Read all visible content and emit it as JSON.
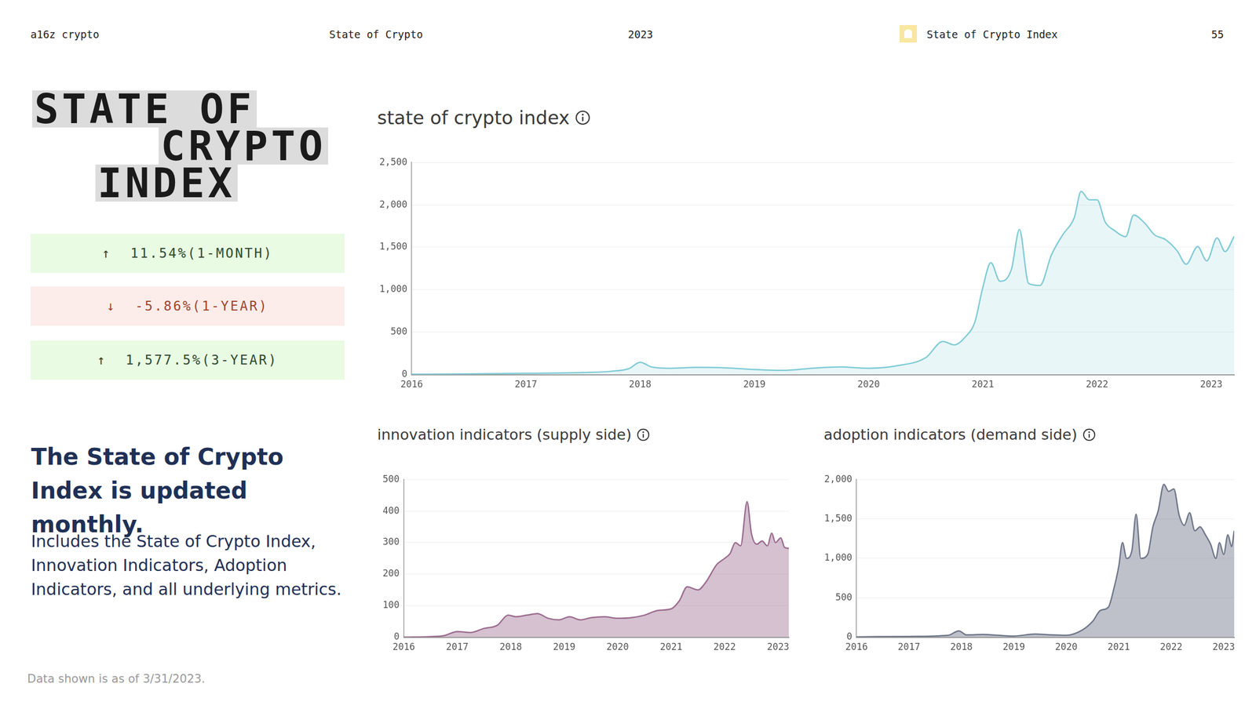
{
  "header": {
    "items": [
      "a16z crypto",
      "State of Crypto",
      "2023"
    ],
    "section": "State of Crypto Index",
    "page": "55"
  },
  "title_lines": [
    "STATE OF",
    "CRYPTO",
    "INDEX"
  ],
  "stats": [
    {
      "text": "↑  11.54%(1-MONTH)",
      "color": "#2f4a2f",
      "background": "#e9fbe3"
    },
    {
      "text": "↓  -5.86%(1-YEAR)",
      "color": "#a3442c",
      "background": "#fcedea"
    },
    {
      "text": "↑  1,577.5%(3-YEAR)",
      "color": "#2f4a2f",
      "background": "#e9fbe3"
    }
  ],
  "heading": "The State of Crypto Index is updated monthly.",
  "body": "Includes the State of Crypto Index, Innovation Indicators, Adoption Indicators, and all underlying metrics.",
  "footnote": "Data shown is as of 3/31/2023.",
  "chart_data": [
    {
      "type": "area",
      "title": "state of crypto index",
      "x": [
        2016,
        2016.5,
        2017,
        2017.5,
        2017.75,
        2017.9,
        2018,
        2018.1,
        2018.25,
        2018.5,
        2018.75,
        2019,
        2019.25,
        2019.5,
        2019.75,
        2020,
        2020.25,
        2020.5,
        2020.65,
        2020.75,
        2020.85,
        2020.93,
        2021,
        2021.07,
        2021.15,
        2021.25,
        2021.32,
        2021.4,
        2021.5,
        2021.6,
        2021.7,
        2021.8,
        2021.86,
        2021.93,
        2022,
        2022.07,
        2022.15,
        2022.25,
        2022.32,
        2022.42,
        2022.5,
        2022.6,
        2022.7,
        2022.78,
        2022.88,
        2022.96,
        2023.05,
        2023.12,
        2023.2
      ],
      "values": [
        5,
        8,
        15,
        25,
        40,
        70,
        145,
        90,
        75,
        85,
        80,
        60,
        50,
        75,
        90,
        75,
        105,
        200,
        390,
        350,
        450,
        620,
        1030,
        1320,
        1100,
        1240,
        1710,
        1075,
        1050,
        1410,
        1650,
        1850,
        2160,
        2060,
        2060,
        1800,
        1700,
        1625,
        1880,
        1780,
        1650,
        1590,
        1460,
        1300,
        1510,
        1340,
        1610,
        1450,
        1630
      ],
      "color": "#7fcbd6",
      "xlim": [
        2016,
        2023.2
      ],
      "xticks": [
        2016,
        2017,
        2018,
        2019,
        2020,
        2021,
        2022,
        2023
      ],
      "ylim": [
        0,
        2500
      ],
      "yticks": [
        0,
        500,
        {
          "value": 1000,
          "label": "1,000"
        },
        {
          "value": 1500,
          "label": "1,500"
        },
        {
          "value": 2000,
          "label": "2,000"
        },
        {
          "value": 2500,
          "label": "2,500"
        }
      ],
      "grid": true
    },
    {
      "type": "area",
      "title": "innovation indicators (supply side)",
      "x": [
        2016,
        2016.5,
        2016.75,
        2017,
        2017.25,
        2017.5,
        2017.75,
        2017.95,
        2018.1,
        2018.3,
        2018.5,
        2018.7,
        2018.9,
        2019.1,
        2019.3,
        2019.5,
        2019.75,
        2020,
        2020.25,
        2020.5,
        2020.75,
        2021,
        2021.15,
        2021.3,
        2021.5,
        2021.65,
        2021.85,
        2022,
        2022.1,
        2022.2,
        2022.3,
        2022.42,
        2022.5,
        2022.6,
        2022.7,
        2022.8,
        2022.88,
        2022.95,
        2023.05,
        2023.12,
        2023.2
      ],
      "values": [
        0,
        2,
        5,
        18,
        15,
        28,
        38,
        70,
        65,
        70,
        75,
        60,
        55,
        65,
        55,
        62,
        65,
        60,
        62,
        70,
        85,
        90,
        115,
        160,
        150,
        175,
        230,
        250,
        265,
        300,
        290,
        430,
        330,
        295,
        305,
        290,
        330,
        300,
        315,
        285,
        282
      ],
      "color": "#9b6b8e",
      "xlim": [
        2016,
        2023.2
      ],
      "xticks": [
        2016,
        2017,
        2018,
        2019,
        2020,
        2021,
        2022,
        2023
      ],
      "ylim": [
        0,
        500
      ],
      "yticks": [
        0,
        100,
        200,
        300,
        400,
        500
      ],
      "grid": true
    },
    {
      "type": "area",
      "title": "adoption indicators (demand side)",
      "x": [
        2016,
        2017,
        2017.75,
        2017.95,
        2018.1,
        2018.4,
        2018.8,
        2019,
        2019.4,
        2019.7,
        2020,
        2020.3,
        2020.5,
        2020.65,
        2020.8,
        2020.9,
        2021,
        2021.07,
        2021.15,
        2021.25,
        2021.33,
        2021.42,
        2021.55,
        2021.65,
        2021.75,
        2021.86,
        2021.95,
        2022.05,
        2022.15,
        2022.25,
        2022.35,
        2022.45,
        2022.55,
        2022.65,
        2022.75,
        2022.85,
        2022.92,
        2023,
        2023.08,
        2023.15,
        2023.2
      ],
      "values": [
        5,
        10,
        25,
        80,
        30,
        35,
        20,
        15,
        40,
        30,
        25,
        90,
        200,
        340,
        380,
        600,
        900,
        1200,
        1000,
        1100,
        1560,
        1000,
        1050,
        1400,
        1600,
        1940,
        1850,
        1880,
        1550,
        1420,
        1580,
        1350,
        1400,
        1300,
        1180,
        1000,
        1200,
        1050,
        1300,
        1150,
        1350
      ],
      "color": "#6e7689",
      "xlim": [
        2016,
        2023.2
      ],
      "xticks": [
        2016,
        2017,
        2018,
        2019,
        2020,
        2021,
        2022,
        2023
      ],
      "ylim": [
        0,
        2000
      ],
      "yticks": [
        0,
        500,
        {
          "value": 1000,
          "label": "1,000"
        },
        {
          "value": 1500,
          "label": "1,500"
        },
        {
          "value": 2000,
          "label": "2,000"
        }
      ],
      "grid": true
    }
  ]
}
